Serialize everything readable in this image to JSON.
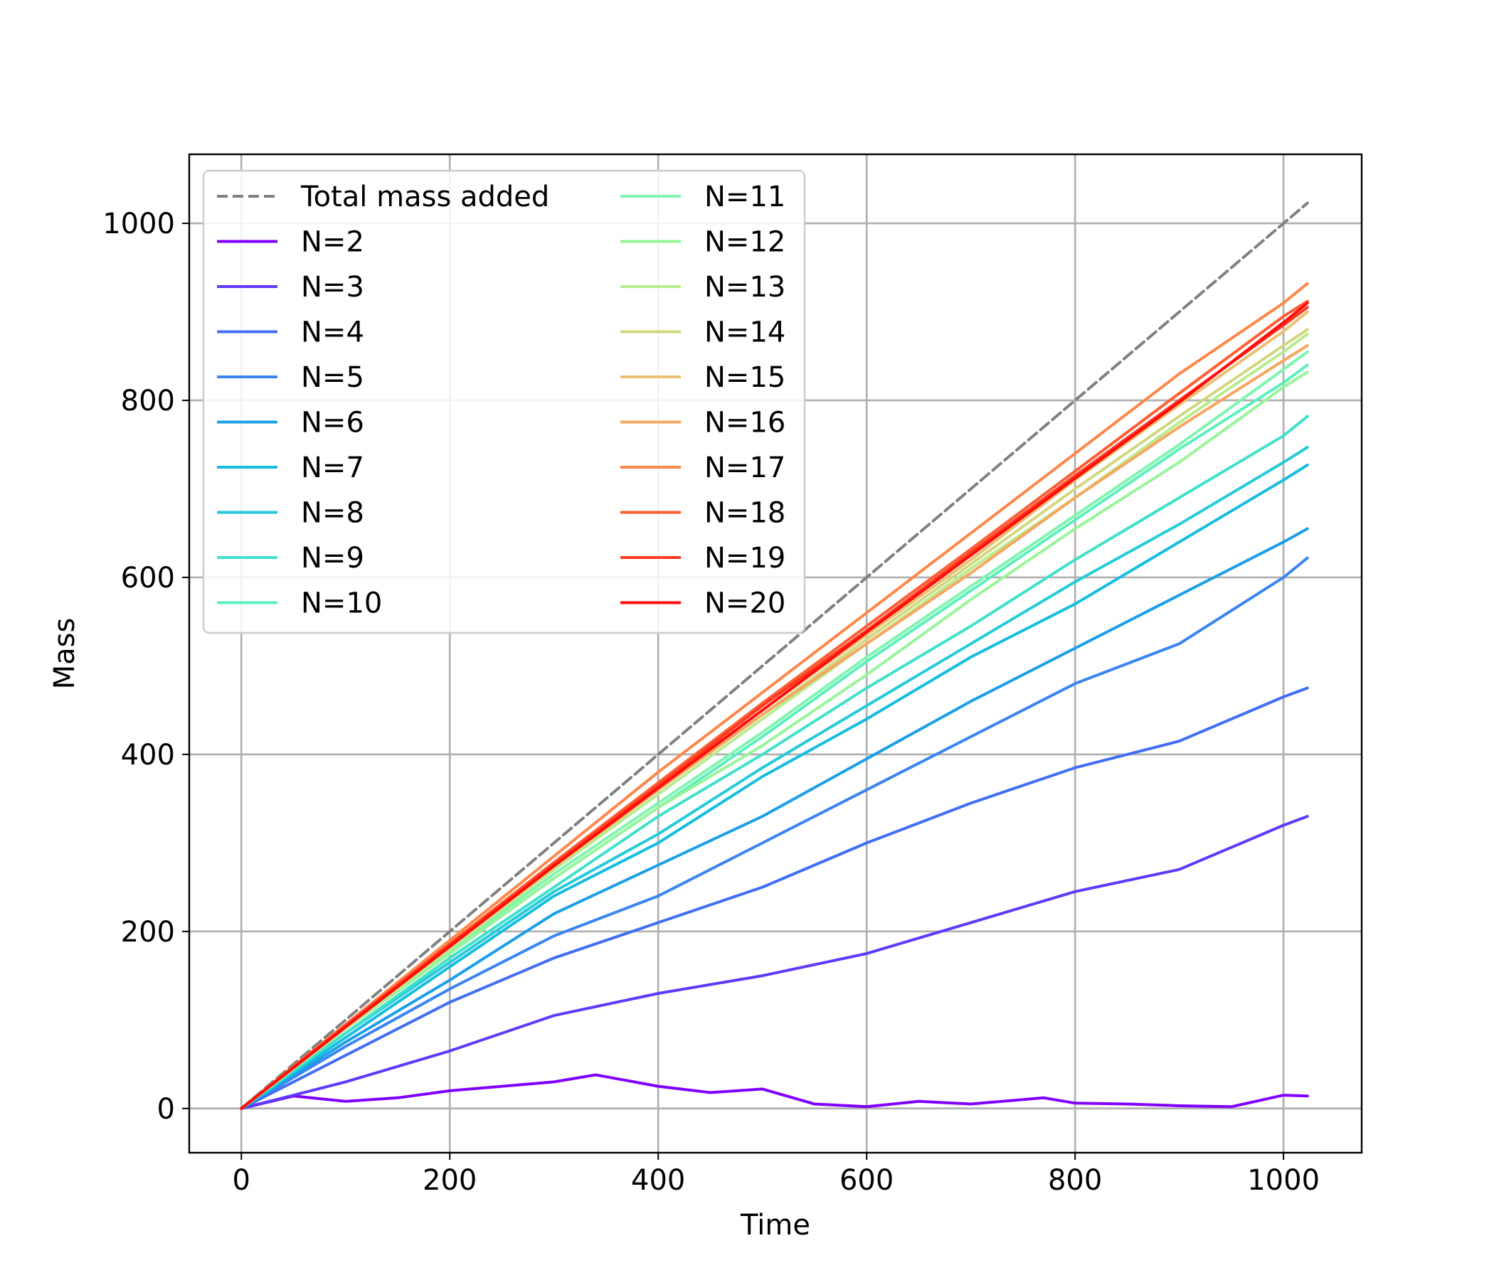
{
  "chart_data": {
    "type": "line",
    "xlabel": "Time",
    "ylabel": "Mass",
    "xlim": [
      -50,
      1075
    ],
    "ylim": [
      -50,
      1078
    ],
    "xticks": [
      0,
      200,
      400,
      600,
      800,
      1000
    ],
    "yticks": [
      0,
      200,
      400,
      600,
      800,
      1000
    ],
    "grid": true,
    "legend": {
      "placement": "top-left",
      "columns": 2
    },
    "series": [
      {
        "name": "Total mass added",
        "color": "#808080",
        "dashed": true,
        "x": [
          0,
          1023
        ],
        "y": [
          0,
          1023
        ]
      },
      {
        "name": "N=2",
        "color": "#8000ff",
        "x": [
          0,
          50,
          100,
          150,
          200,
          250,
          300,
          340,
          400,
          450,
          500,
          550,
          600,
          650,
          700,
          770,
          800,
          850,
          900,
          950,
          1000,
          1023
        ],
        "y": [
          0,
          14,
          8,
          12,
          20,
          25,
          30,
          38,
          25,
          18,
          22,
          5,
          2,
          8,
          5,
          12,
          6,
          5,
          3,
          2,
          15,
          14
        ]
      },
      {
        "name": "N=3",
        "color": "#6039fb",
        "x": [
          0,
          100,
          200,
          300,
          400,
          500,
          600,
          700,
          800,
          900,
          1000,
          1023
        ],
        "y": [
          0,
          30,
          65,
          105,
          130,
          150,
          175,
          210,
          245,
          270,
          320,
          330
        ]
      },
      {
        "name": "N=4",
        "color": "#406ef5",
        "x": [
          0,
          100,
          200,
          300,
          400,
          500,
          600,
          700,
          800,
          900,
          1000,
          1023
        ],
        "y": [
          0,
          60,
          120,
          170,
          210,
          250,
          300,
          345,
          385,
          415,
          465,
          475
        ]
      },
      {
        "name": "N=5",
        "color": "#3a85f1",
        "x": [
          0,
          100,
          200,
          300,
          400,
          500,
          600,
          700,
          800,
          900,
          1000,
          1023
        ],
        "y": [
          0,
          70,
          135,
          195,
          240,
          300,
          360,
          420,
          480,
          525,
          600,
          622
        ]
      },
      {
        "name": "N=6",
        "color": "#1a9fe8",
        "x": [
          0,
          100,
          200,
          300,
          400,
          500,
          600,
          700,
          800,
          900,
          1000,
          1023
        ],
        "y": [
          0,
          75,
          145,
          220,
          275,
          330,
          395,
          460,
          520,
          580,
          640,
          655
        ]
      },
      {
        "name": "N=7",
        "color": "#16bde0",
        "x": [
          0,
          100,
          200,
          300,
          400,
          500,
          600,
          700,
          800,
          900,
          1000,
          1023
        ],
        "y": [
          0,
          80,
          160,
          240,
          300,
          375,
          440,
          510,
          570,
          640,
          710,
          727
        ]
      },
      {
        "name": "N=8",
        "color": "#25cbd8",
        "x": [
          0,
          100,
          200,
          300,
          400,
          500,
          600,
          700,
          800,
          900,
          1000,
          1023
        ],
        "y": [
          0,
          85,
          165,
          245,
          310,
          385,
          455,
          525,
          595,
          660,
          730,
          747
        ]
      },
      {
        "name": "N=9",
        "color": "#40e1cb",
        "x": [
          0,
          100,
          200,
          300,
          400,
          500,
          600,
          700,
          800,
          900,
          1000,
          1023
        ],
        "y": [
          0,
          85,
          170,
          250,
          330,
          400,
          475,
          545,
          620,
          690,
          760,
          782
        ]
      },
      {
        "name": "N=10",
        "color": "#5cf0bc",
        "x": [
          0,
          100,
          200,
          300,
          400,
          500,
          600,
          700,
          800,
          900,
          1000,
          1023
        ],
        "y": [
          0,
          90,
          175,
          260,
          340,
          420,
          505,
          585,
          665,
          745,
          820,
          840
        ]
      },
      {
        "name": "N=11",
        "color": "#7ff5b0",
        "x": [
          0,
          100,
          200,
          300,
          400,
          500,
          600,
          700,
          800,
          900,
          1000,
          1023
        ],
        "y": [
          0,
          90,
          178,
          265,
          345,
          425,
          510,
          590,
          670,
          750,
          835,
          855
        ]
      },
      {
        "name": "N=12",
        "color": "#99f59a",
        "x": [
          0,
          100,
          200,
          300,
          400,
          500,
          600,
          700,
          800,
          900,
          1000,
          1023
        ],
        "y": [
          0,
          90,
          175,
          260,
          340,
          410,
          490,
          575,
          655,
          730,
          815,
          832
        ]
      },
      {
        "name": "N=13",
        "color": "#b8ec8d",
        "x": [
          0,
          100,
          200,
          300,
          400,
          500,
          600,
          700,
          800,
          900,
          1000,
          1023
        ],
        "y": [
          0,
          90,
          180,
          270,
          355,
          440,
          525,
          610,
          690,
          775,
          855,
          875
        ]
      },
      {
        "name": "N=14",
        "color": "#d0d87e",
        "x": [
          0,
          100,
          200,
          300,
          400,
          500,
          600,
          700,
          800,
          900,
          1000,
          1023
        ],
        "y": [
          0,
          92,
          182,
          272,
          360,
          445,
          530,
          615,
          700,
          782,
          862,
          880
        ]
      },
      {
        "name": "N=15",
        "color": "#ecc072",
        "x": [
          0,
          100,
          200,
          300,
          400,
          500,
          600,
          700,
          800,
          900,
          1000,
          1023
        ],
        "y": [
          0,
          92,
          185,
          275,
          362,
          450,
          535,
          620,
          710,
          795,
          878,
          900
        ]
      },
      {
        "name": "N=16",
        "color": "#f8a660",
        "x": [
          0,
          100,
          200,
          300,
          400,
          500,
          600,
          700,
          800,
          900,
          1000,
          1023
        ],
        "y": [
          0,
          93,
          185,
          275,
          360,
          445,
          525,
          605,
          690,
          770,
          845,
          862
        ]
      },
      {
        "name": "N=17",
        "color": "#ff874a",
        "x": [
          0,
          100,
          200,
          300,
          400,
          500,
          600,
          700,
          800,
          900,
          1000,
          1023
        ],
        "y": [
          0,
          95,
          190,
          285,
          380,
          470,
          560,
          650,
          740,
          830,
          910,
          932
        ]
      },
      {
        "name": "N=18",
        "color": "#ff5e33",
        "x": [
          0,
          100,
          200,
          300,
          400,
          500,
          600,
          700,
          800,
          900,
          1000,
          1023
        ],
        "y": [
          0,
          94,
          186,
          278,
          368,
          458,
          545,
          632,
          720,
          808,
          895,
          912
        ]
      },
      {
        "name": "N=19",
        "color": "#ff3a20",
        "x": [
          0,
          100,
          200,
          300,
          400,
          500,
          600,
          700,
          800,
          900,
          1000,
          1023
        ],
        "y": [
          0,
          93,
          185,
          276,
          365,
          455,
          540,
          628,
          715,
          800,
          885,
          905
        ]
      },
      {
        "name": "N=20",
        "color": "#ff0d0d",
        "x": [
          0,
          100,
          200,
          300,
          400,
          500,
          600,
          700,
          800,
          900,
          1000,
          1023
        ],
        "y": [
          0,
          92,
          183,
          274,
          362,
          450,
          538,
          625,
          712,
          798,
          888,
          910
        ]
      }
    ]
  }
}
